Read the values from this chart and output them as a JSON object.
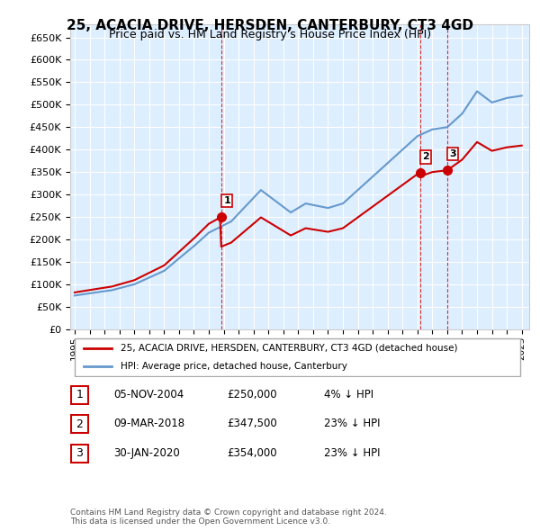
{
  "title": "25, ACACIA DRIVE, HERSDEN, CANTERBURY, CT3 4GD",
  "subtitle": "Price paid vs. HM Land Registry's House Price Index (HPI)",
  "property_label": "25, ACACIA DRIVE, HERSDEN, CANTERBURY, CT3 4GD (detached house)",
  "hpi_label": "HPI: Average price, detached house, Canterbury",
  "footnote": "Contains HM Land Registry data © Crown copyright and database right 2024.\nThis data is licensed under the Open Government Licence v3.0.",
  "transactions": [
    {
      "num": 1,
      "date": "05-NOV-2004",
      "price": 250000,
      "pct": "4%",
      "dir": "↓"
    },
    {
      "num": 2,
      "date": "09-MAR-2018",
      "price": 347500,
      "pct": "23%",
      "dir": "↓"
    },
    {
      "num": 3,
      "date": "30-JAN-2020",
      "price": 354000,
      "pct": "23%",
      "dir": "↓"
    }
  ],
  "property_color": "#cc0000",
  "hpi_color": "#6699cc",
  "marker_color": "#cc0000",
  "vline_color": "#cc0000",
  "background_plot": "#ddeeff",
  "grid_color": "#ffffff",
  "ylim": [
    0,
    680000
  ],
  "yticks": [
    0,
    50000,
    100000,
    150000,
    200000,
    250000,
    300000,
    350000,
    400000,
    450000,
    500000,
    550000,
    600000,
    650000
  ],
  "year_start": 1995,
  "year_end": 2025
}
